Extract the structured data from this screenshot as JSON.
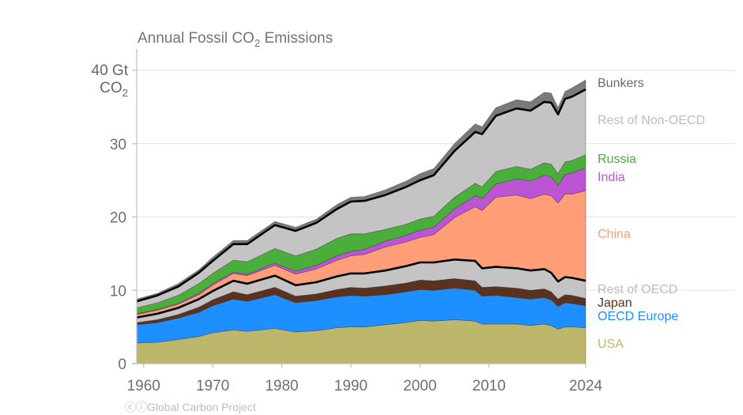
{
  "chart_data": {
    "type": "area",
    "stacked": true,
    "title": "Annual Fossil CO₂ Emissions",
    "ylabel": "Gt CO₂",
    "ylim": [
      0,
      40
    ],
    "xlim": [
      1959,
      2024
    ],
    "yticks": [
      0,
      10,
      20,
      30,
      40
    ],
    "xticks": [
      1960,
      1970,
      1980,
      1990,
      2000,
      2010,
      2024
    ],
    "grid": true,
    "legend_placement": "right",
    "x": [
      1959,
      1962,
      1965,
      1968,
      1970,
      1973,
      1975,
      1979,
      1982,
      1985,
      1988,
      1990,
      1992,
      1995,
      1998,
      2000,
      2002,
      2005,
      2008,
      2009,
      2011,
      2014,
      2016,
      2018,
      2019,
      2020,
      2021,
      2022,
      2024
    ],
    "series": [
      {
        "name": "USA",
        "color": "#bdb76b",
        "values": [
          2.8,
          2.9,
          3.3,
          3.7,
          4.2,
          4.6,
          4.4,
          4.8,
          4.3,
          4.5,
          4.9,
          5.0,
          5.0,
          5.3,
          5.6,
          5.9,
          5.8,
          6.0,
          5.8,
          5.4,
          5.4,
          5.4,
          5.2,
          5.4,
          5.2,
          4.7,
          5.0,
          5.0,
          4.9
        ]
      },
      {
        "name": "OECD Europe",
        "color": "#1e8fff",
        "values": [
          2.5,
          2.7,
          2.9,
          3.3,
          3.7,
          4.2,
          4.1,
          4.6,
          4.0,
          4.1,
          4.2,
          4.3,
          4.2,
          4.1,
          4.2,
          4.2,
          4.2,
          4.3,
          4.2,
          3.8,
          3.9,
          3.6,
          3.6,
          3.6,
          3.5,
          3.1,
          3.3,
          3.2,
          3.0
        ]
      },
      {
        "name": "Japan",
        "color": "#5a3220",
        "values": [
          0.3,
          0.4,
          0.5,
          0.7,
          0.8,
          1.0,
          0.9,
          1.0,
          0.9,
          0.9,
          1.0,
          1.1,
          1.1,
          1.2,
          1.2,
          1.3,
          1.3,
          1.3,
          1.3,
          1.2,
          1.2,
          1.3,
          1.2,
          1.2,
          1.1,
          1.0,
          1.1,
          1.1,
          1.0
        ]
      },
      {
        "name": "Rest of OECD",
        "color": "#c4c4c4",
        "values": [
          0.7,
          0.8,
          0.9,
          1.1,
          1.2,
          1.5,
          1.5,
          1.6,
          1.5,
          1.6,
          1.8,
          1.9,
          2.0,
          2.1,
          2.3,
          2.4,
          2.5,
          2.6,
          2.7,
          2.6,
          2.7,
          2.7,
          2.7,
          2.7,
          2.6,
          2.4,
          2.4,
          2.4,
          2.4
        ]
      },
      {
        "name": "China",
        "color": "#ff9e78",
        "values": [
          0.4,
          0.5,
          0.5,
          0.6,
          0.8,
          1.0,
          1.1,
          1.4,
          1.5,
          1.8,
          2.2,
          2.4,
          2.6,
          3.2,
          3.3,
          3.4,
          3.8,
          5.7,
          7.4,
          7.9,
          9.5,
          10.0,
          9.8,
          10.2,
          10.5,
          10.7,
          11.3,
          11.4,
          12.3
        ]
      },
      {
        "name": "India",
        "color": "#bb55d3",
        "values": [
          0.1,
          0.1,
          0.1,
          0.2,
          0.2,
          0.2,
          0.2,
          0.3,
          0.4,
          0.5,
          0.6,
          0.6,
          0.7,
          0.8,
          0.9,
          1.0,
          1.0,
          1.2,
          1.5,
          1.6,
          1.8,
          2.2,
          2.4,
          2.6,
          2.6,
          2.4,
          2.7,
          2.9,
          3.1
        ]
      },
      {
        "name": "Russia",
        "color": "#4aaf3a",
        "values": [
          0.8,
          0.9,
          1.1,
          1.3,
          1.4,
          1.6,
          1.7,
          2.0,
          2.1,
          2.2,
          2.4,
          2.4,
          2.1,
          1.6,
          1.5,
          1.5,
          1.5,
          1.6,
          1.7,
          1.6,
          1.7,
          1.7,
          1.6,
          1.7,
          1.7,
          1.6,
          1.7,
          1.7,
          1.8
        ]
      },
      {
        "name": "Rest of Non-OECD",
        "color": "#c4c4c4",
        "values": [
          0.9,
          1.0,
          1.2,
          1.5,
          1.7,
          2.2,
          2.4,
          3.2,
          3.4,
          3.6,
          4.0,
          4.4,
          4.5,
          4.7,
          5.1,
          5.3,
          5.6,
          6.3,
          7.0,
          7.2,
          7.6,
          7.9,
          8.0,
          8.3,
          8.4,
          8.1,
          8.6,
          8.7,
          8.9
        ]
      },
      {
        "name": "Bunkers",
        "color": "#7a7a7a",
        "values": [
          0.3,
          0.3,
          0.4,
          0.4,
          0.5,
          0.5,
          0.5,
          0.5,
          0.5,
          0.5,
          0.6,
          0.6,
          0.6,
          0.7,
          0.8,
          0.9,
          0.9,
          1.0,
          1.1,
          1.0,
          1.1,
          1.2,
          1.2,
          1.3,
          1.3,
          0.9,
          1.0,
          1.2,
          1.3
        ]
      }
    ]
  },
  "labels": {
    "title_main": "Annual Fossil CO",
    "title_sub": "2",
    "title_tail": " Emissions",
    "y_top_value": "40 Gt",
    "y_unit_main": "CO",
    "y_unit_sub": "2",
    "footer": "Global Carbon Project",
    "footer_icons": "ⓒⓘ"
  }
}
